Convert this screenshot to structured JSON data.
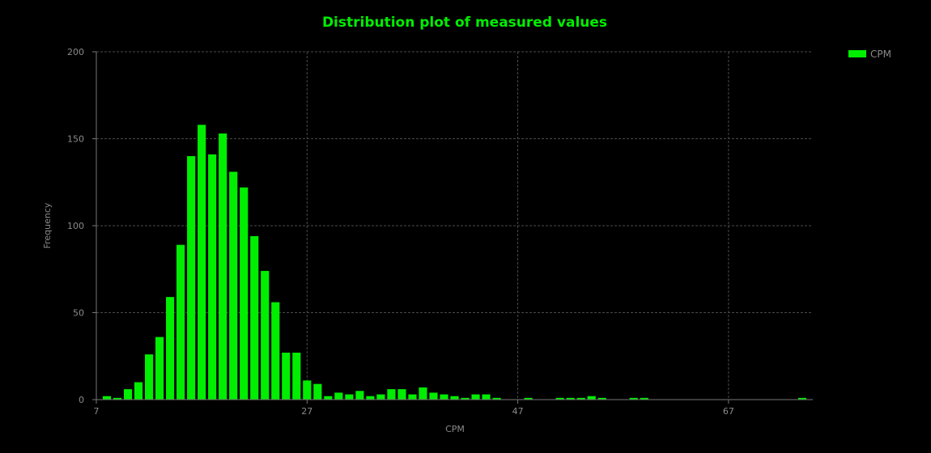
{
  "chart_data": {
    "type": "bar",
    "title": "Distribution plot of measured values",
    "xlabel": "CPM",
    "ylabel": "Frequency",
    "xlim": [
      7,
      75
    ],
    "ylim": [
      0,
      200
    ],
    "x_ticks": [
      "7",
      "27",
      "47",
      "67"
    ],
    "y_ticks": [
      "0",
      "50",
      "100",
      "150",
      "200"
    ],
    "grid": true,
    "legend_position": "top-right",
    "series": [
      {
        "name": "CPM",
        "color": "#00ee00",
        "x": [
          8,
          9,
          10,
          11,
          12,
          13,
          14,
          15,
          16,
          17,
          18,
          19,
          20,
          21,
          22,
          23,
          24,
          25,
          26,
          27,
          28,
          29,
          30,
          31,
          32,
          33,
          34,
          35,
          36,
          37,
          38,
          39,
          40,
          41,
          42,
          43,
          44,
          45,
          46,
          47,
          48,
          49,
          50,
          51,
          52,
          53,
          54,
          55,
          56,
          57,
          58,
          59,
          60,
          61,
          62,
          63,
          64,
          65,
          66,
          67,
          68,
          69,
          70,
          71,
          72,
          73,
          74
        ],
        "values": [
          2,
          1,
          6,
          10,
          26,
          36,
          59,
          89,
          140,
          158,
          141,
          153,
          131,
          122,
          94,
          74,
          56,
          27,
          27,
          11,
          9,
          2,
          4,
          3,
          5,
          2,
          3,
          6,
          6,
          3,
          7,
          4,
          3,
          2,
          1,
          3,
          3,
          1,
          0,
          0,
          1,
          0,
          0,
          1,
          1,
          1,
          2,
          1,
          0,
          0,
          1,
          1,
          0,
          0,
          0,
          0,
          0,
          0,
          0,
          0,
          0,
          0,
          0,
          0,
          0,
          0,
          1
        ]
      }
    ]
  }
}
